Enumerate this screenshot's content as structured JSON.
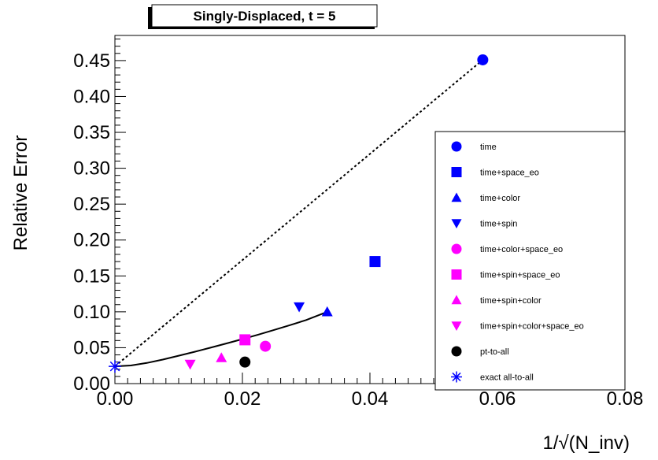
{
  "chart_data": {
    "type": "scatter",
    "title": "Singly-Displaced, t = 5",
    "xlabel": "1/√(N_inv)",
    "ylabel": "Relative Error",
    "xlim": [
      0.0,
      0.08
    ],
    "ylim": [
      0.0,
      0.485
    ],
    "x_ticks": [
      {
        "value": 0.0,
        "label": "0.00"
      },
      {
        "value": 0.02,
        "label": "0.02"
      },
      {
        "value": 0.04,
        "label": "0.04"
      },
      {
        "value": 0.06,
        "label": "0.06"
      },
      {
        "value": 0.08,
        "label": "0.08"
      }
    ],
    "y_ticks": [
      {
        "value": 0.0,
        "label": "0.00"
      },
      {
        "value": 0.05,
        "label": "0.05"
      },
      {
        "value": 0.1,
        "label": "0.10"
      },
      {
        "value": 0.15,
        "label": "0.15"
      },
      {
        "value": 0.2,
        "label": "0.20"
      },
      {
        "value": 0.25,
        "label": "0.25"
      },
      {
        "value": 0.3,
        "label": "0.30"
      },
      {
        "value": 0.35,
        "label": "0.35"
      },
      {
        "value": 0.4,
        "label": "0.40"
      },
      {
        "value": 0.45,
        "label": "0.45"
      }
    ],
    "grid": false,
    "legend_position": "right",
    "series": [
      {
        "name": "time",
        "marker": "circle",
        "color": "#0000ff",
        "points": [
          {
            "x": 0.0577,
            "y": 0.451
          }
        ]
      },
      {
        "name": "time+space_eo",
        "marker": "square",
        "color": "#0000ff",
        "points": [
          {
            "x": 0.0408,
            "y": 0.17
          }
        ]
      },
      {
        "name": "time+color",
        "marker": "triangle-up",
        "color": "#0000ff",
        "points": [
          {
            "x": 0.0333,
            "y": 0.1
          }
        ]
      },
      {
        "name": "time+spin",
        "marker": "triangle-down",
        "color": "#0000ff",
        "points": [
          {
            "x": 0.0289,
            "y": 0.107
          }
        ]
      },
      {
        "name": "time+color+space_eo",
        "marker": "circle",
        "color": "#ff00ff",
        "points": [
          {
            "x": 0.0236,
            "y": 0.052
          }
        ]
      },
      {
        "name": "time+spin+space_eo",
        "marker": "square",
        "color": "#ff00ff",
        "points": [
          {
            "x": 0.0204,
            "y": 0.061
          }
        ]
      },
      {
        "name": "time+spin+color",
        "marker": "triangle-up",
        "color": "#ff00ff",
        "points": [
          {
            "x": 0.0167,
            "y": 0.036
          }
        ]
      },
      {
        "name": "time+spin+color+space_eo",
        "marker": "triangle-down",
        "color": "#ff00ff",
        "points": [
          {
            "x": 0.0118,
            "y": 0.027
          }
        ]
      },
      {
        "name": "pt-to-all",
        "marker": "circle",
        "color": "#000000",
        "points": [
          {
            "x": 0.0204,
            "y": 0.03
          }
        ]
      },
      {
        "name": "exact all-to-all",
        "marker": "star",
        "color": "#0000ff",
        "points": [
          {
            "x": 0.0,
            "y": 0.024
          }
        ]
      }
    ],
    "lines": [
      {
        "style": "dotted",
        "color": "#000000",
        "points": [
          {
            "x": 0.0,
            "y": 0.024
          },
          {
            "x": 0.0577,
            "y": 0.451
          }
        ]
      },
      {
        "style": "solid",
        "color": "#000000",
        "points": [
          {
            "x": 0.0,
            "y": 0.024
          },
          {
            "x": 0.0025,
            "y": 0.0252
          },
          {
            "x": 0.005,
            "y": 0.0288
          },
          {
            "x": 0.0075,
            "y": 0.0335
          },
          {
            "x": 0.01,
            "y": 0.0388
          },
          {
            "x": 0.0125,
            "y": 0.0443
          },
          {
            "x": 0.015,
            "y": 0.05
          },
          {
            "x": 0.0175,
            "y": 0.056
          },
          {
            "x": 0.02,
            "y": 0.062
          },
          {
            "x": 0.0225,
            "y": 0.0683
          },
          {
            "x": 0.025,
            "y": 0.0748
          },
          {
            "x": 0.0275,
            "y": 0.0815
          },
          {
            "x": 0.03,
            "y": 0.0885
          },
          {
            "x": 0.0333,
            "y": 0.1
          }
        ]
      }
    ]
  }
}
